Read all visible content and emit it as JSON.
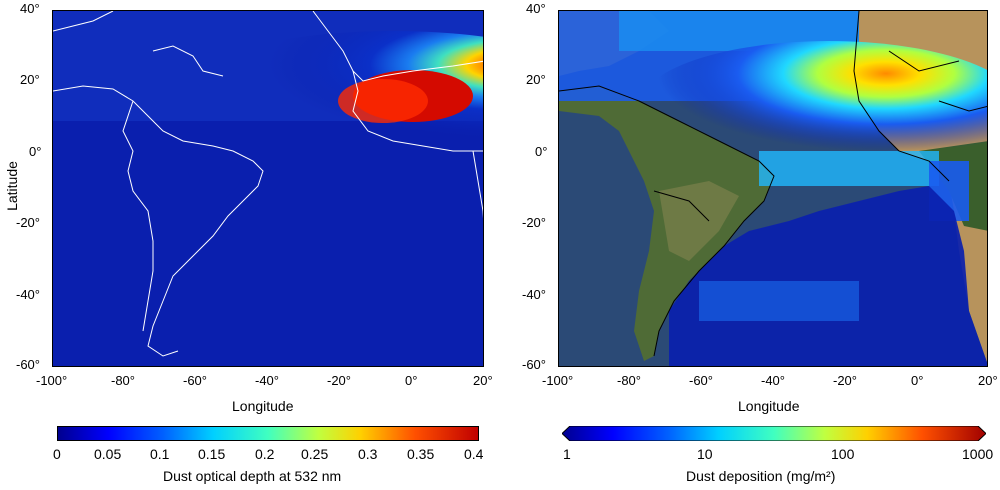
{
  "left_panel": {
    "xlabel": "Longitude",
    "ylabel": "Latitude",
    "x_ticks": [
      "-100°",
      "-80°",
      "-60°",
      "-40°",
      "-20°",
      "0°",
      "20°"
    ],
    "y_ticks": [
      "40°",
      "20°",
      "0°",
      "-20°",
      "-40°",
      "-60°"
    ],
    "colorbar": {
      "label": "Dust optical depth at 532 nm",
      "ticks": [
        "0",
        "0.05",
        "0.1",
        "0.15",
        "0.2",
        "0.25",
        "0.3",
        "0.35",
        "0.4"
      ],
      "range": [
        0,
        0.4
      ],
      "scale": "linear"
    },
    "background": "dark blue field with white coastlines",
    "colors": {
      "low": "#00008f",
      "high": "#cc0000"
    }
  },
  "right_panel": {
    "xlabel": "Longitude",
    "x_ticks": [
      "-100°",
      "-80°",
      "-60°",
      "-40°",
      "-20°",
      "0°",
      "20°"
    ],
    "y_ticks": [
      "40°",
      "20°",
      "0°",
      "-20°",
      "-40°",
      "-60°"
    ],
    "colorbar": {
      "label": "Dust deposition (mg/m²)",
      "ticks": [
        "1",
        "10",
        "100",
        "1000"
      ],
      "range": [
        1,
        1000
      ],
      "scale": "log"
    },
    "background": "satellite imagery with black country borders"
  },
  "chart_data": [
    {
      "type": "heatmap",
      "xlabel": "Longitude",
      "ylabel": "Latitude",
      "xlim": [
        -100,
        20
      ],
      "ylim": [
        -60,
        40
      ],
      "colorbar_label": "Dust optical depth at 532 nm",
      "colorbar_range": [
        0,
        0.4
      ],
      "hotspots": [
        {
          "lon": -10,
          "lat": 17,
          "value": 0.38
        },
        {
          "lon": -30,
          "lat": 15,
          "value": 0.22
        },
        {
          "lon": -50,
          "lat": 15,
          "value": 0.12
        }
      ]
    },
    {
      "type": "heatmap",
      "xlabel": "Longitude",
      "xlim": [
        -100,
        20
      ],
      "ylim": [
        -60,
        40
      ],
      "colorbar_label": "Dust deposition (mg/m²)",
      "colorbar_range": [
        1,
        1000
      ],
      "colorbar_scale": "log",
      "hotspots": [
        {
          "lon": -25,
          "lat": 18,
          "value": 200
        },
        {
          "lon": -40,
          "lat": 10,
          "value": 60
        },
        {
          "lon": -60,
          "lat": -40,
          "value": 10
        }
      ]
    }
  ]
}
